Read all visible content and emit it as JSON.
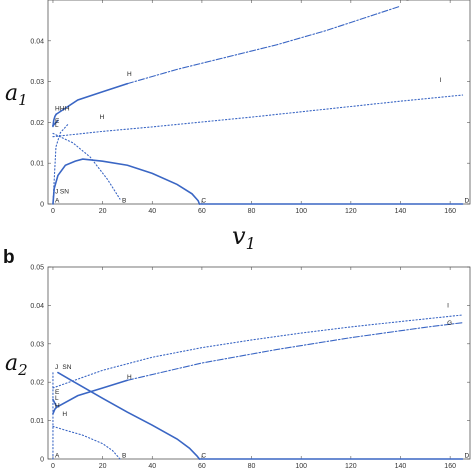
{
  "panel_b_label": "b",
  "chart_data": [
    {
      "type": "line",
      "panel": "a",
      "xlabel": "v",
      "xlabel_sub": "1",
      "ylabel": "a",
      "ylabel_sub": "1",
      "xlim": [
        -2,
        168
      ],
      "ylim": [
        0,
        0.05
      ],
      "xticks": [
        0,
        20,
        40,
        60,
        80,
        100,
        120,
        140,
        160
      ],
      "yticks": [
        0,
        0.01,
        0.02,
        0.03,
        0.04
      ],
      "ytick_labels": [
        "0",
        "0.01",
        "0.02",
        "0.03",
        "0.04"
      ],
      "series": [
        {
          "style": "solid",
          "x": [
            0,
            0.3,
            0.8,
            1.3
          ],
          "y": [
            0.019,
            0.0205,
            0.0215,
            0.022
          ]
        },
        {
          "style": "solid",
          "x": [
            1.3,
            10,
            20,
            30
          ],
          "y": [
            0.022,
            0.0255,
            0.0275,
            0.0295
          ]
        },
        {
          "style": "dashdot",
          "x": [
            30,
            50,
            70,
            90,
            110,
            130,
            140
          ],
          "y": [
            0.0295,
            0.033,
            0.036,
            0.039,
            0.0425,
            0.0465,
            0.0485
          ]
        },
        {
          "style": "dotted",
          "x": [
            0,
            20,
            40,
            60,
            80,
            100,
            120,
            140,
            165
          ],
          "y": [
            0.0165,
            0.0178,
            0.0189,
            0.0201,
            0.0213,
            0.0226,
            0.0239,
            0.0252,
            0.0267
          ]
        },
        {
          "style": "dotted",
          "x": [
            0,
            1.2,
            3,
            6
          ],
          "y": [
            0.0,
            0.014,
            0.0175,
            0.0195
          ]
        },
        {
          "style": "dotted",
          "x": [
            0,
            8,
            15,
            22,
            27
          ],
          "y": [
            0.0173,
            0.015,
            0.0115,
            0.006,
            0.0012
          ]
        },
        {
          "style": "solid",
          "x": [
            0,
            0.5,
            2,
            5,
            9,
            12,
            20,
            30,
            40,
            50,
            56,
            58.5,
            59
          ],
          "y": [
            0.0,
            0.0038,
            0.007,
            0.0095,
            0.0105,
            0.011,
            0.0105,
            0.0095,
            0.0075,
            0.0048,
            0.0025,
            0.0008,
            0.0
          ]
        },
        {
          "style": "solid",
          "x": [
            59,
            80,
            100,
            120,
            140,
            165
          ],
          "y": [
            0,
            0,
            0,
            0,
            0,
            0
          ]
        },
        {
          "style": "solid",
          "x": [
            0,
            2
          ],
          "y": [
            0.0192,
            0.0205
          ]
        }
      ],
      "points": [
        {
          "label": "A",
          "x": 0,
          "y": 0
        },
        {
          "label": "J",
          "x": 0,
          "y": 0.0022
        },
        {
          "label": "SN",
          "x": 2,
          "y": 0.0022
        },
        {
          "label": "B",
          "x": 27,
          "y": 0
        },
        {
          "label": "C",
          "x": 59,
          "y": 0
        },
        {
          "label": "D",
          "x": 165,
          "y": 0
        },
        {
          "label": "H",
          "x": 0,
          "y": 0.0225
        },
        {
          "label": "H",
          "x": 2,
          "y": 0.0225
        },
        {
          "label": "H",
          "x": 4,
          "y": 0.0225
        },
        {
          "label": "E",
          "x": 0,
          "y": 0.0195
        },
        {
          "label": "L",
          "x": 0,
          "y": 0.0185
        },
        {
          "label": "H",
          "x": 18,
          "y": 0.0205
        },
        {
          "label": "H",
          "x": 29,
          "y": 0.031
        },
        {
          "label": "I",
          "x": 155,
          "y": 0.0295
        },
        {
          "label": "G",
          "x": 141,
          "y": 0.0495
        }
      ]
    },
    {
      "type": "line",
      "panel": "b",
      "ylabel": "a",
      "ylabel_sub": "2",
      "xlim": [
        -2,
        168
      ],
      "ylim": [
        0,
        0.05
      ],
      "xticks": [
        0,
        20,
        40,
        60,
        80,
        100,
        120,
        140,
        160
      ],
      "yticks": [
        0,
        0.01,
        0.02,
        0.03,
        0.04,
        0.05
      ],
      "ytick_labels": [
        "0",
        "0.01",
        "0.02",
        "0.03",
        "0.04",
        "0.05"
      ],
      "series": [
        {
          "style": "dotted",
          "x": [
            0,
            20,
            40,
            60,
            80,
            100,
            120,
            140,
            165
          ],
          "y": [
            0.0185,
            0.0231,
            0.0265,
            0.029,
            0.031,
            0.0328,
            0.0344,
            0.0358,
            0.0375
          ]
        },
        {
          "style": "solid",
          "x": [
            1.5,
            10,
            20,
            30
          ],
          "y": [
            0.0135,
            0.0165,
            0.0185,
            0.0205
          ]
        },
        {
          "style": "dashdot",
          "x": [
            30,
            60,
            90,
            120,
            150,
            165
          ],
          "y": [
            0.0205,
            0.025,
            0.0285,
            0.0316,
            0.0343,
            0.0355
          ]
        },
        {
          "style": "solid",
          "x": [
            0,
            0.8,
            1.5
          ],
          "y": [
            0.0118,
            0.013,
            0.0135
          ]
        },
        {
          "style": "solid",
          "x": [
            0,
            0.8,
            1.5
          ],
          "y": [
            0.0155,
            0.0145,
            0.0135
          ]
        },
        {
          "style": "solid",
          "x": [
            2,
            10,
            20,
            30,
            40,
            50,
            55,
            58,
            59
          ],
          "y": [
            0.0225,
            0.0195,
            0.0158,
            0.0122,
            0.0088,
            0.0052,
            0.0028,
            0.0008,
            0.0
          ]
        },
        {
          "style": "solid",
          "x": [
            59,
            80,
            100,
            120,
            140,
            165
          ],
          "y": [
            0,
            0,
            0,
            0,
            0,
            0
          ]
        },
        {
          "style": "dotted",
          "x": [
            0,
            5,
            12,
            20,
            24,
            27
          ],
          "y": [
            0.0085,
            0.0075,
            0.0062,
            0.004,
            0.0022,
            0.0
          ]
        },
        {
          "style": "dotted",
          "x": [
            0,
            0,
            0
          ],
          "y": [
            0.0,
            0.012,
            0.0225
          ]
        }
      ],
      "points": [
        {
          "label": "A",
          "x": 0,
          "y": 0
        },
        {
          "label": "B",
          "x": 27,
          "y": 0
        },
        {
          "label": "C",
          "x": 59,
          "y": 0
        },
        {
          "label": "D",
          "x": 165,
          "y": 0
        },
        {
          "label": "J",
          "x": 0,
          "y": 0.023
        },
        {
          "label": "SN",
          "x": 3,
          "y": 0.023
        },
        {
          "label": "E",
          "x": 0,
          "y": 0.0165
        },
        {
          "label": "L",
          "x": 0,
          "y": 0.015
        },
        {
          "label": "H",
          "x": 0,
          "y": 0.013
        },
        {
          "label": "H",
          "x": 3,
          "y": 0.0108
        },
        {
          "label": "H",
          "x": 29,
          "y": 0.0205
        },
        {
          "label": "I",
          "x": 158,
          "y": 0.039
        },
        {
          "label": "G",
          "x": 158,
          "y": 0.0345
        }
      ]
    }
  ]
}
